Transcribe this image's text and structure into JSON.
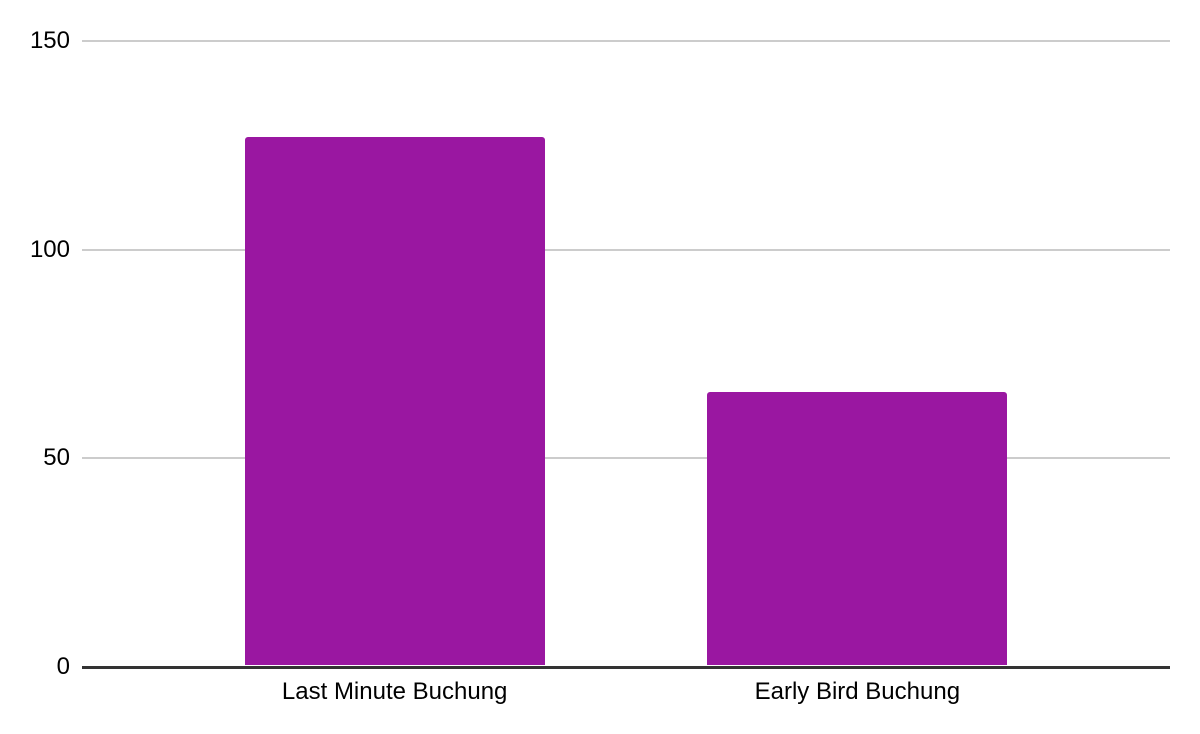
{
  "chart_data": {
    "type": "bar",
    "title": "",
    "xlabel": "",
    "ylabel": "",
    "categories": [
      "Last Minute Buchung",
      "Early Bird Buchung"
    ],
    "values": [
      127,
      66
    ],
    "ylim": [
      0,
      150
    ],
    "yticks": [
      0,
      50,
      100,
      150
    ],
    "grid": true,
    "legend": "none",
    "colors": {
      "bar": "#9A17A1",
      "gridline": "#CCCCCC",
      "axis": "#333333",
      "label": "#000000",
      "background": "#FFFFFF"
    }
  }
}
